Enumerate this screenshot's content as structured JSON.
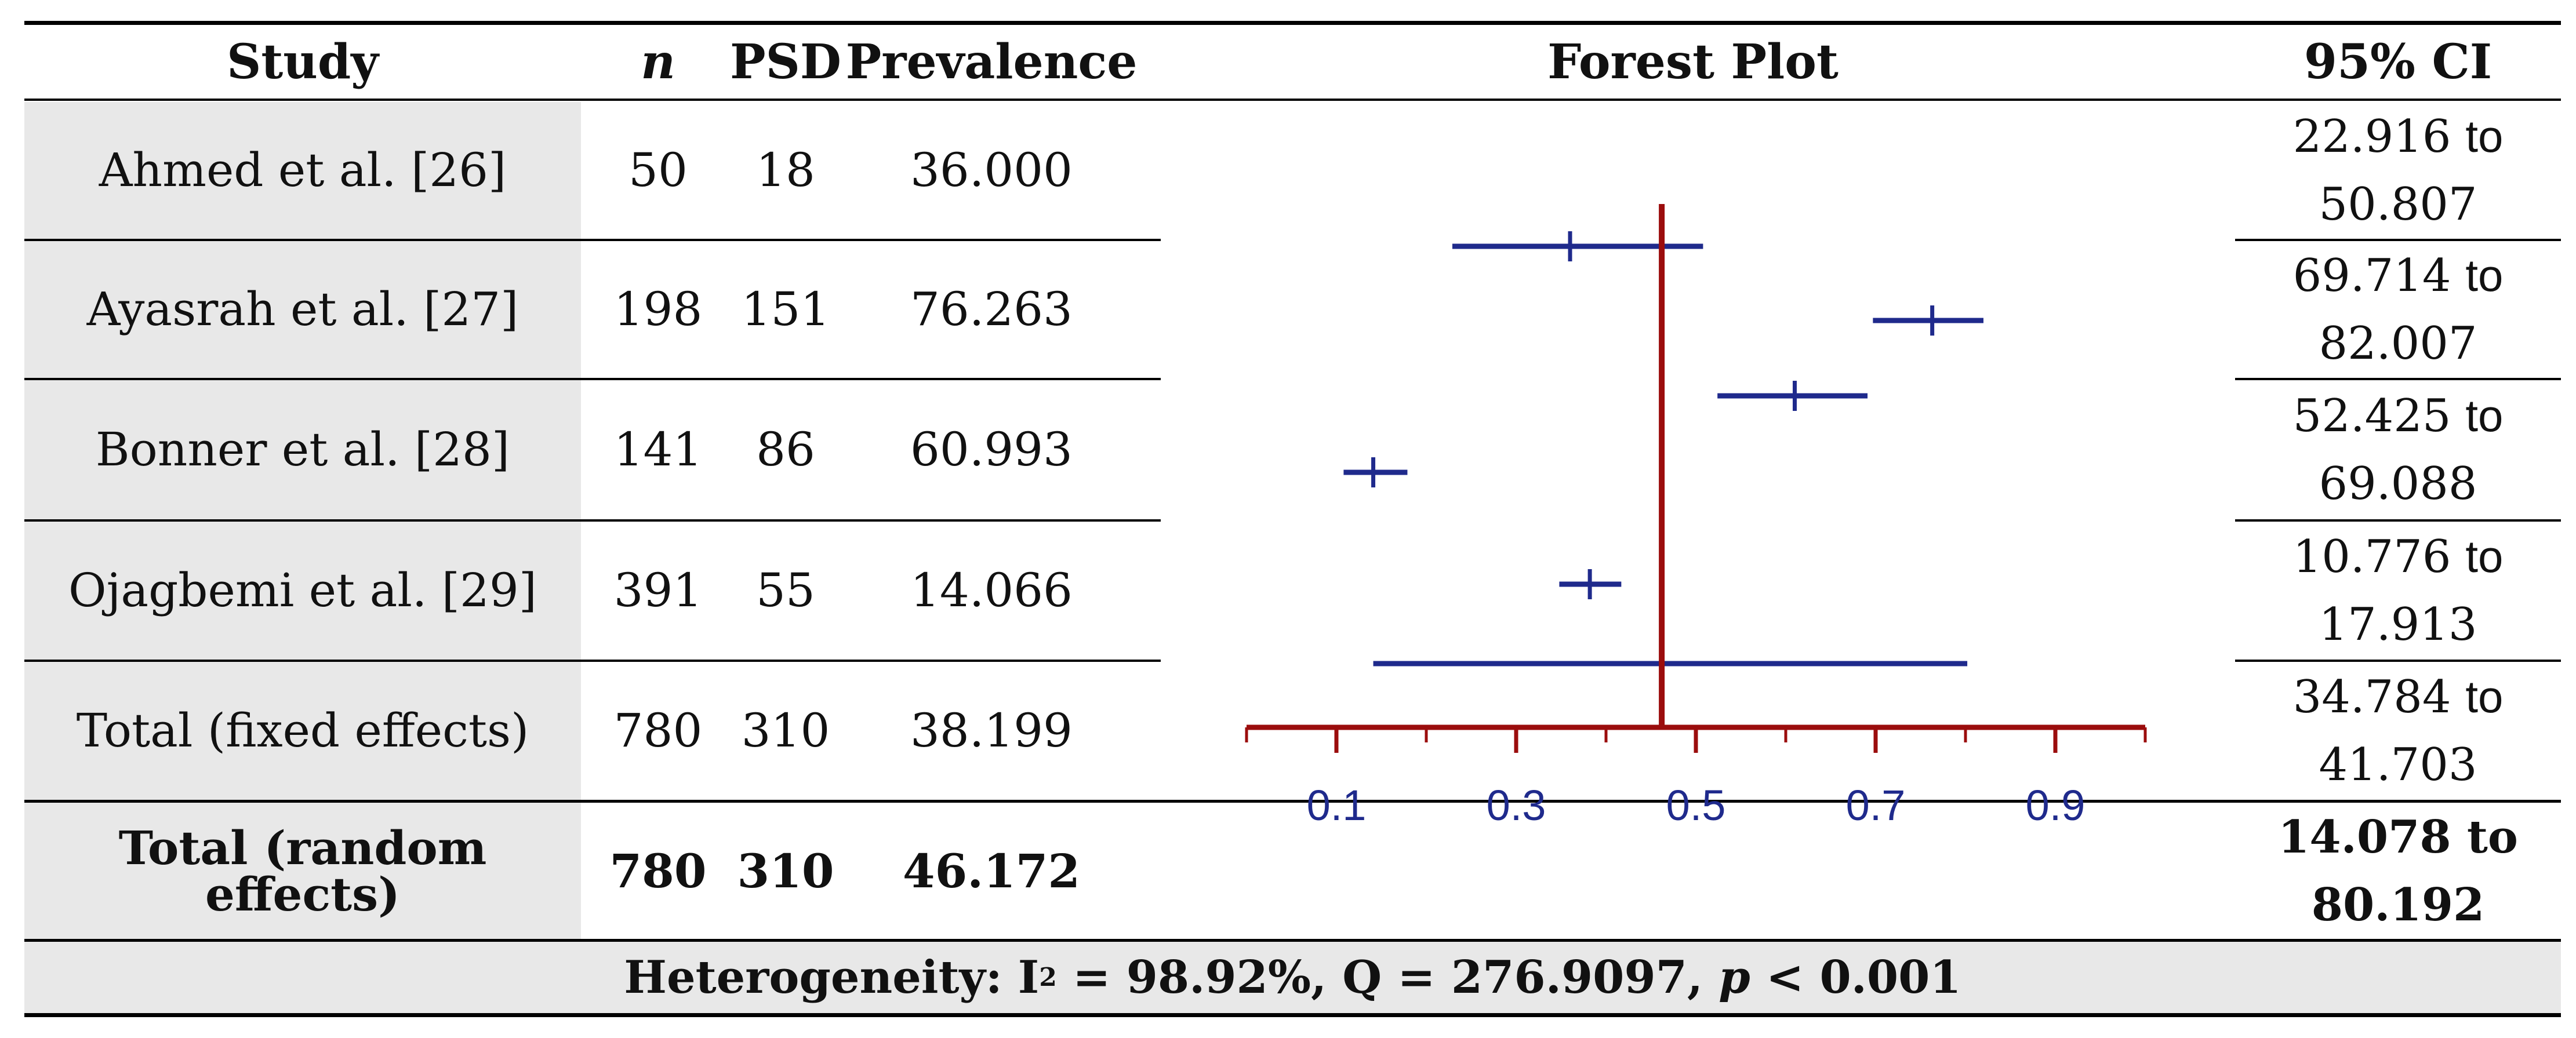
{
  "table": {
    "headers": {
      "study": "Study",
      "n": "n",
      "psd": "PSD",
      "prevalence": "Prevalence",
      "forest": "Forest Plot",
      "ci": "95% CI"
    },
    "rows": [
      {
        "study": "Ahmed et al. [26]",
        "n": "50",
        "psd": "18",
        "prevalence": "36.000",
        "ci_low": "22.916",
        "ci_to": "to",
        "ci_high": "50.807"
      },
      {
        "study": "Ayasrah et al. [27]",
        "n": "198",
        "psd": "151",
        "prevalence": "76.263",
        "ci_low": "69.714",
        "ci_to": "to",
        "ci_high": "82.007"
      },
      {
        "study": "Bonner et al. [28]",
        "n": "141",
        "psd": "86",
        "prevalence": "60.993",
        "ci_low": "52.425",
        "ci_to": "to",
        "ci_high": "69.088"
      },
      {
        "study": "Ojagbemi et al. [29]",
        "n": "391",
        "psd": "55",
        "prevalence": "14.066",
        "ci_low": "10.776",
        "ci_to": "to",
        "ci_high": "17.913"
      },
      {
        "study": "Total (fixed effects)",
        "n": "780",
        "psd": "310",
        "prevalence": "38.199",
        "ci_low": "34.784",
        "ci_to": "to",
        "ci_high": "41.703"
      },
      {
        "study": "Total (random effects)",
        "n": "780",
        "psd": "310",
        "prevalence": "46.172",
        "ci_low": "14.078",
        "ci_to": "to",
        "ci_high": "80.192"
      }
    ],
    "footer": {
      "prefix": "Heterogeneity: I",
      "sup": "2",
      "middle": " = 98.92%, Q = 276.9097, ",
      "p": "p",
      "suffix": " < 0.001"
    }
  },
  "chart_data": {
    "type": "forest",
    "title": "Forest Plot",
    "xlim": [
      0.0,
      1.0
    ],
    "ticks": [
      0.1,
      0.3,
      0.5,
      0.7,
      0.9
    ],
    "tick_labels": [
      "0.1",
      "0.3",
      "0.5",
      "0.7",
      "0.9"
    ],
    "reference_line": 0.462,
    "series": [
      {
        "name": "Ahmed et al. [26]",
        "estimate": 0.36,
        "low": 0.229,
        "high": 0.508
      },
      {
        "name": "Ayasrah et al. [27]",
        "estimate": 0.763,
        "low": 0.697,
        "high": 0.82
      },
      {
        "name": "Bonner et al. [28]",
        "estimate": 0.61,
        "low": 0.524,
        "high": 0.691
      },
      {
        "name": "Ojagbemi et al. [29]",
        "estimate": 0.141,
        "low": 0.108,
        "high": 0.179
      },
      {
        "name": "Total (fixed effects)",
        "estimate": 0.382,
        "low": 0.348,
        "high": 0.417
      },
      {
        "name": "Total (random effects)",
        "estimate": 0.462,
        "low": 0.141,
        "high": 0.802
      }
    ],
    "colors": {
      "interval": "#1f2a8c",
      "axis": "#9b0d0d",
      "tick_label": "#1f2a8c"
    }
  }
}
